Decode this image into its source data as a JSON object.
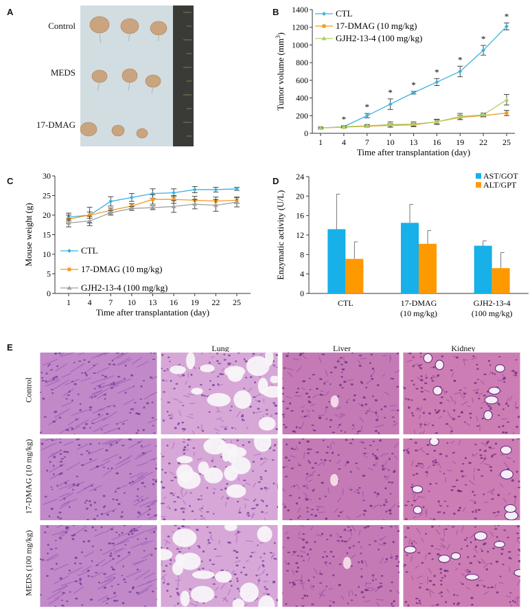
{
  "panels": {
    "a": {
      "letter": "A",
      "rows": [
        "Control",
        "MEDS",
        "17-DMAG"
      ]
    },
    "b": {
      "letter": "B"
    },
    "c": {
      "letter": "C"
    },
    "d": {
      "letter": "D"
    },
    "e": {
      "letter": "E",
      "columns": [
        "",
        "Lung",
        "Liver",
        "Kidney"
      ],
      "rows": [
        "Control",
        "17-DMAG (10 mg/kg)",
        "MEDS (100 mg/kg)"
      ]
    }
  },
  "colors": {
    "ctl": "#3ab1dd",
    "dmag": "#f59a1c",
    "gjh": "#a6d46a",
    "gjh_c": "#a0a0a0",
    "ast": "#17b0e8",
    "alt": "#ff9900"
  },
  "chart_data": [
    {
      "id": "B",
      "type": "line",
      "x": [
        1,
        4,
        7,
        10,
        13,
        16,
        19,
        22,
        25
      ],
      "xlabel": "Time after transplantation (day)",
      "ylabel": "Tumor volume (mm3)",
      "ylim": [
        0,
        1400
      ],
      "yticks": [
        0,
        200,
        400,
        600,
        800,
        1000,
        1200,
        1400
      ],
      "legend": "top-left",
      "significance_marker": "*",
      "significance_x": [
        4,
        7,
        10,
        13,
        16,
        19,
        22,
        25
      ],
      "series": [
        {
          "name": "CTL",
          "values": [
            60,
            75,
            200,
            330,
            460,
            580,
            700,
            940,
            1210
          ],
          "errors": [
            10,
            10,
            25,
            60,
            15,
            40,
            60,
            55,
            40
          ],
          "color": "#3ab1dd"
        },
        {
          "name": "17-DMAG (10 mg/kg)",
          "values": [
            60,
            70,
            80,
            90,
            95,
            130,
            180,
            200,
            230
          ],
          "errors": [
            10,
            10,
            10,
            20,
            20,
            20,
            25,
            15,
            30
          ],
          "color": "#f59a1c"
        },
        {
          "name": "GJH2-13-4 (100 mg/kg)",
          "values": [
            60,
            75,
            85,
            100,
            105,
            130,
            190,
            210,
            380
          ],
          "errors": [
            10,
            10,
            15,
            30,
            25,
            30,
            35,
            20,
            60
          ],
          "color": "#a6d46a"
        }
      ]
    },
    {
      "id": "C",
      "type": "line",
      "x": [
        1,
        4,
        7,
        10,
        13,
        16,
        19,
        22,
        25
      ],
      "xlabel": "Time after transplantation (day)",
      "ylabel": "Mouse weight (g)",
      "ylim": [
        0,
        30
      ],
      "yticks": [
        0,
        5,
        10,
        15,
        20,
        25,
        30
      ],
      "legend": "bottom-left",
      "series": [
        {
          "name": "CTL",
          "values": [
            19.5,
            20,
            23.5,
            24.5,
            25.5,
            25.7,
            26.5,
            26.5,
            26.7
          ],
          "errors": [
            1,
            2,
            1.2,
            1,
            1.2,
            1,
            0.8,
            0.6,
            0.4
          ],
          "color": "#3ab1dd"
        },
        {
          "name": "17-DMAG (10 mg/kg)",
          "values": [
            19,
            20,
            21.2,
            22.3,
            24,
            24,
            23.8,
            23.6,
            23.8
          ],
          "errors": [
            1,
            0.8,
            0.6,
            0.6,
            1.2,
            1,
            1,
            1,
            0.8
          ],
          "color": "#f59a1c"
        },
        {
          "name": "GJH2-13-4 (100 mg/kg)",
          "values": [
            18,
            18.5,
            20.6,
            21.7,
            21.9,
            22.2,
            22.8,
            22.5,
            23.3
          ],
          "errors": [
            1,
            1.2,
            0.6,
            0.5,
            0.5,
            1.5,
            1.2,
            1.5,
            1.2
          ],
          "color": "#a0a0a0"
        }
      ]
    },
    {
      "id": "D",
      "type": "bar",
      "categories": [
        "CTL",
        "17-DMAG\n(10 mg/kg)",
        "GJH2-13-4\n(100 mg/kg)"
      ],
      "ylabel": "Enzymatic activity (U/L)",
      "ylim": [
        0,
        24
      ],
      "yticks": [
        0,
        4,
        8,
        12,
        16,
        20,
        24
      ],
      "legend": "top-right",
      "series": [
        {
          "name": "AST/GOT",
          "values": [
            13.2,
            14.5,
            9.8
          ],
          "errors": [
            7.2,
            3.8,
            1
          ],
          "color": "#17b0e8"
        },
        {
          "name": "ALT/GPT",
          "values": [
            7.1,
            10.2,
            5.2
          ],
          "errors": [
            3.5,
            2.7,
            3.2
          ],
          "color": "#ff9900"
        }
      ]
    }
  ]
}
